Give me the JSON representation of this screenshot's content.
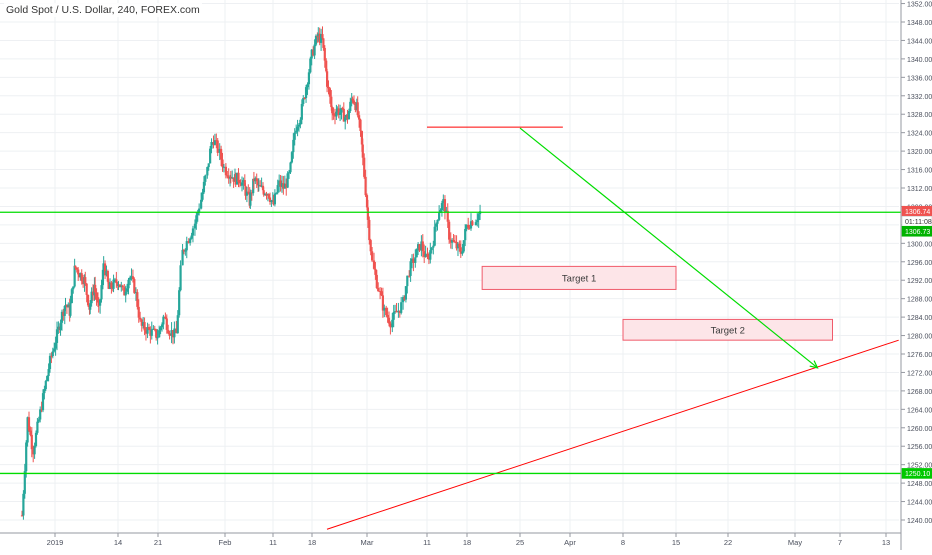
{
  "header": {
    "title": "Gold Spot / U.S. Dollar, 240, FOREX.com"
  },
  "colors": {
    "up": "#26a69a",
    "down": "#ef5350",
    "support": "#00dd00",
    "trend": "#ff0000",
    "target_fill": "#fde5e8",
    "target_border": "#f05b6b",
    "grid": "#eef0f3",
    "axis_text": "#4a4f5c"
  },
  "chart_data": {
    "type": "candlestick",
    "title": "Gold Spot / U.S. Dollar, 240, FOREX.com",
    "y_ticks": [
      1240,
      1244,
      1248,
      1252,
      1256,
      1260,
      1264,
      1268,
      1272,
      1276,
      1280,
      1284,
      1288,
      1292,
      1296,
      1300,
      1304,
      1308,
      1312,
      1316,
      1320,
      1324,
      1328,
      1332,
      1336,
      1340,
      1344,
      1348,
      1352
    ],
    "y_tick_labels": [
      "1240.00",
      "1244.00",
      "1248.00",
      "1252.00",
      "1256.00",
      "1260.00",
      "1264.00",
      "1268.00",
      "1272.00",
      "1276.00",
      "1280.00",
      "1284.00",
      "1288.00",
      "1292.00",
      "1296.00",
      "1300.00",
      "1304.00",
      "1308.00",
      "1312.00",
      "1316.00",
      "1320.00",
      "1324.00",
      "1328.00",
      "1332.00",
      "1336.00",
      "1340.00",
      "1344.00",
      "1348.00",
      "1352.00"
    ],
    "ylim": [
      1237,
      1353
    ],
    "x_ticks": [
      {
        "label": "2019",
        "date": "2019-01-01"
      },
      {
        "label": "14",
        "date": "2019-01-14"
      },
      {
        "label": "21",
        "date": "2019-01-21"
      },
      {
        "label": "Feb",
        "date": "2019-02-01"
      },
      {
        "label": "11",
        "date": "2019-02-11"
      },
      {
        "label": "18",
        "date": "2019-02-18"
      },
      {
        "label": "Mar",
        "date": "2019-03-01"
      },
      {
        "label": "11",
        "date": "2019-03-11"
      },
      {
        "label": "18",
        "date": "2019-03-18"
      },
      {
        "label": "25",
        "date": "2019-03-25"
      },
      {
        "label": "Apr",
        "date": "2019-04-01"
      },
      {
        "label": "8",
        "date": "2019-04-08"
      },
      {
        "label": "15",
        "date": "2019-04-15"
      },
      {
        "label": "22",
        "date": "2019-04-22"
      },
      {
        "label": "May",
        "date": "2019-05-01"
      },
      {
        "label": "7",
        "date": "2019-05-07"
      },
      {
        "label": "13",
        "date": "2019-05-13"
      }
    ],
    "price_path": [
      [
        "2018-12-26",
        1241
      ],
      [
        "2018-12-27",
        1262
      ],
      [
        "2018-12-28",
        1255
      ],
      [
        "2018-12-31",
        1274
      ],
      [
        "2019-01-02",
        1283
      ],
      [
        "2019-01-03",
        1287
      ],
      [
        "2019-01-04",
        1285
      ],
      [
        "2019-01-05",
        1295
      ],
      [
        "2019-01-07",
        1292
      ],
      [
        "2019-01-08",
        1286
      ],
      [
        "2019-01-09",
        1291
      ],
      [
        "2019-01-10",
        1285
      ],
      [
        "2019-01-11",
        1296
      ],
      [
        "2019-01-12",
        1290
      ],
      [
        "2019-01-14",
        1292
      ],
      [
        "2019-01-15",
        1289
      ],
      [
        "2019-01-16",
        1293
      ],
      [
        "2019-01-17",
        1290
      ],
      [
        "2019-01-18",
        1282
      ],
      [
        "2019-01-21",
        1280
      ],
      [
        "2019-01-22",
        1284
      ],
      [
        "2019-01-23",
        1281
      ],
      [
        "2019-01-24",
        1280
      ],
      [
        "2019-01-25",
        1298
      ],
      [
        "2019-01-27",
        1304
      ],
      [
        "2019-01-28",
        1309
      ],
      [
        "2019-01-29",
        1315
      ],
      [
        "2019-01-30",
        1323
      ],
      [
        "2019-01-31",
        1320
      ],
      [
        "2019-02-01",
        1316
      ],
      [
        "2019-02-03",
        1314
      ],
      [
        "2019-02-04",
        1314
      ],
      [
        "2019-02-05",
        1312
      ],
      [
        "2019-02-06",
        1309
      ],
      [
        "2019-02-07",
        1314
      ],
      [
        "2019-02-08",
        1312
      ],
      [
        "2019-02-10",
        1311
      ],
      [
        "2019-02-11",
        1308
      ],
      [
        "2019-02-12",
        1313
      ],
      [
        "2019-02-13",
        1312
      ],
      [
        "2019-02-14",
        1315
      ],
      [
        "2019-02-15",
        1325
      ],
      [
        "2019-02-16",
        1328
      ],
      [
        "2019-02-18",
        1341
      ],
      [
        "2019-02-19",
        1345
      ],
      [
        "2019-02-20",
        1344
      ],
      [
        "2019-02-21",
        1335
      ],
      [
        "2019-02-22",
        1328
      ],
      [
        "2019-02-23",
        1329
      ],
      [
        "2019-02-25",
        1327
      ],
      [
        "2019-02-26",
        1332
      ],
      [
        "2019-02-27",
        1329
      ],
      [
        "2019-02-28",
        1320
      ],
      [
        "2019-03-01",
        1307
      ],
      [
        "2019-03-02",
        1295
      ],
      [
        "2019-03-04",
        1285
      ],
      [
        "2019-03-05",
        1283
      ],
      [
        "2019-03-06",
        1285
      ],
      [
        "2019-03-07",
        1287
      ],
      [
        "2019-03-08",
        1294
      ],
      [
        "2019-03-10",
        1300
      ],
      [
        "2019-03-11",
        1296
      ],
      [
        "2019-03-12",
        1300
      ],
      [
        "2019-03-13",
        1307
      ],
      [
        "2019-03-14",
        1309
      ],
      [
        "2019-03-15",
        1301
      ],
      [
        "2019-03-17",
        1298
      ],
      [
        "2019-03-18",
        1304
      ],
      [
        "2019-03-19",
        1305
      ],
      [
        "2019-03-20",
        1306.74
      ]
    ],
    "horizontal_lines": [
      {
        "price": 1306.74,
        "label": "1306.74",
        "color": "#00dd00"
      },
      {
        "price": 1250.1,
        "label": "1250.10",
        "color": "#00dd00"
      }
    ],
    "resistance_segment": {
      "from_date": "2019-03-11",
      "to_date": "2019-03-31",
      "price": 1325.2,
      "color": "#ff0000"
    },
    "trend_line": {
      "from": {
        "date": "2019-02-21",
        "price": 1238
      },
      "to": {
        "date": "2019-05-15",
        "price": 1279
      },
      "color": "#ff0000"
    },
    "projection_arrow": {
      "from": {
        "date": "2019-03-25",
        "price": 1325
      },
      "to": {
        "date": "2019-05-04",
        "price": 1273
      },
      "color": "#00dd00"
    },
    "targets": [
      {
        "label": "Target 1",
        "from_date": "2019-03-20",
        "to_date": "2019-04-15",
        "top": 1295,
        "bottom": 1290
      },
      {
        "label": "Target 2",
        "from_date": "2019-04-08",
        "to_date": "2019-05-06",
        "top": 1283.5,
        "bottom": 1279
      }
    ],
    "price_labels": [
      {
        "text": "1306.74",
        "price": 1306.74,
        "kind": "last"
      },
      {
        "text": "01:11:08",
        "price": 1306.74,
        "kind": "countdown"
      },
      {
        "text": "1306.73",
        "price": 1306.74,
        "kind": "bid"
      },
      {
        "text": "1250.10",
        "price": 1250.1,
        "kind": "line"
      }
    ]
  }
}
